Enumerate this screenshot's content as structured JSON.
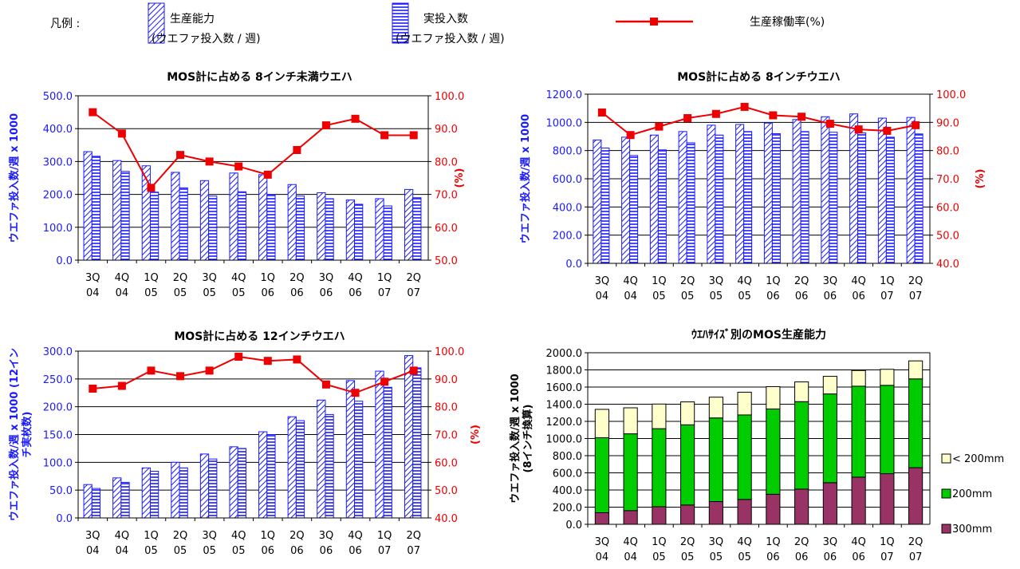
{
  "legend": {
    "label": "凡例 :",
    "items": [
      {
        "line1": "生産能力",
        "line2": "(ウエファ投入数 / 週)",
        "kind": "bar-diag"
      },
      {
        "line1": "実投入数",
        "line2": "(ウエファ投入数 / 週)",
        "kind": "bar-horiz"
      },
      {
        "line1": "生産稼働率(%)",
        "line2": "",
        "kind": "line"
      }
    ]
  },
  "colors": {
    "blue": "#1a1aff",
    "red": "#ee0000",
    "purple": "#993366",
    "green": "#00cc00",
    "cream": "#ffffcc"
  },
  "chart_data": [
    {
      "type": "bar+line",
      "title": "MOS計に占める 8インチ未満ウエハ",
      "ylabel": "ウエファ投入数/週 x 1000",
      "y2label": "(%)",
      "categories": [
        "3Q 04",
        "4Q 04",
        "1Q 05",
        "2Q 05",
        "3Q 05",
        "4Q 05",
        "1Q 06",
        "2Q 06",
        "3Q 06",
        "4Q 06",
        "1Q 07",
        "2Q 07"
      ],
      "ylim": [
        0,
        500
      ],
      "ystep": 100,
      "ydec": 1,
      "y2lim": [
        50,
        100
      ],
      "y2step": 10,
      "y2dec": 1,
      "series": [
        {
          "name": "生産能力",
          "values": [
            330,
            303,
            287,
            267,
            242,
            265,
            260,
            230,
            205,
            183,
            187,
            215
          ]
        },
        {
          "name": "実投入数",
          "values": [
            316,
            270,
            207,
            220,
            195,
            208,
            200,
            195,
            187,
            170,
            165,
            190
          ]
        },
        {
          "name": "生産稼働率(%)",
          "values": [
            95,
            88.5,
            72,
            82,
            80,
            78.5,
            76,
            83.5,
            91,
            93,
            88,
            88
          ]
        }
      ]
    },
    {
      "type": "bar+line",
      "title": "MOS計に占める 8インチウエハ",
      "ylabel": "ウエファ投入数/週 x 1000",
      "y2label": "(%)",
      "categories": [
        "3Q 04",
        "4Q 04",
        "1Q 05",
        "2Q 05",
        "3Q 05",
        "4Q 05",
        "1Q 06",
        "2Q 06",
        "3Q 06",
        "4Q 06",
        "1Q 07",
        "2Q 07"
      ],
      "ylim": [
        0,
        1200
      ],
      "ystep": 200,
      "ydec": 1,
      "y2lim": [
        40,
        100
      ],
      "y2step": 10,
      "y2dec": 1,
      "series": [
        {
          "name": "生産能力",
          "values": [
            875,
            895,
            910,
            935,
            980,
            985,
            995,
            1020,
            1040,
            1060,
            1030,
            1035
          ]
        },
        {
          "name": "実投入数",
          "values": [
            818,
            765,
            805,
            855,
            910,
            935,
            920,
            935,
            930,
            925,
            895,
            918
          ]
        },
        {
          "name": "生産稼働率(%)",
          "values": [
            93.5,
            85.5,
            88.5,
            91.5,
            93,
            95.5,
            92.5,
            92,
            89.5,
            87.5,
            87,
            89
          ]
        }
      ]
    },
    {
      "type": "bar+line",
      "title": "MOS計に占める 12インチウエハ",
      "ylabel": "ウエファ投入数/週 x 1000 (12インチ実枚数)",
      "y2label": "(%)",
      "categories": [
        "3Q 04",
        "4Q 04",
        "1Q 05",
        "2Q 05",
        "3Q 05",
        "4Q 05",
        "1Q 06",
        "2Q 06",
        "3Q 06",
        "4Q 06",
        "1Q 07",
        "2Q 07"
      ],
      "ylim": [
        0,
        300
      ],
      "ystep": 50,
      "ydec": 1,
      "y2lim": [
        40,
        100
      ],
      "y2step": 10,
      "y2dec": 1,
      "series": [
        {
          "name": "生産能力",
          "values": [
            60,
            72,
            90,
            100,
            115,
            128,
            155,
            182,
            212,
            247,
            264,
            292
          ]
        },
        {
          "name": "実投入数",
          "values": [
            53,
            64,
            84,
            90,
            106,
            125,
            150,
            175,
            186,
            210,
            235,
            270
          ]
        },
        {
          "name": "生産稼働率(%)",
          "values": [
            86.5,
            87.5,
            93,
            91,
            93,
            98,
            96.5,
            97,
            88,
            85,
            89,
            93
          ]
        }
      ]
    },
    {
      "type": "stacked-bar",
      "title": "ｳｴﾊｻｲｽﾞ別のMOS生産能力",
      "ylabel": "ウエファ投入数/週 x 1000",
      "ylabel2": "(8インチ換算)",
      "categories": [
        "3Q 04",
        "4Q 04",
        "1Q 05",
        "2Q 05",
        "3Q 05",
        "4Q 05",
        "1Q 06",
        "2Q 06",
        "3Q 06",
        "4Q 06",
        "1Q 07",
        "2Q 07"
      ],
      "ylim": [
        0,
        2000
      ],
      "ystep": 200,
      "ydec": 1,
      "series": [
        {
          "name": "300mm",
          "values": [
            135,
            160,
            205,
            225,
            265,
            290,
            350,
            410,
            485,
            550,
            590,
            660
          ]
        },
        {
          "name": "200mm",
          "values": [
            875,
            895,
            910,
            935,
            975,
            985,
            995,
            1020,
            1035,
            1060,
            1030,
            1035
          ]
        },
        {
          "name": "< 200mm",
          "values": [
            330,
            303,
            287,
            267,
            242,
            265,
            260,
            230,
            205,
            183,
            187,
            210
          ]
        }
      ]
    }
  ]
}
